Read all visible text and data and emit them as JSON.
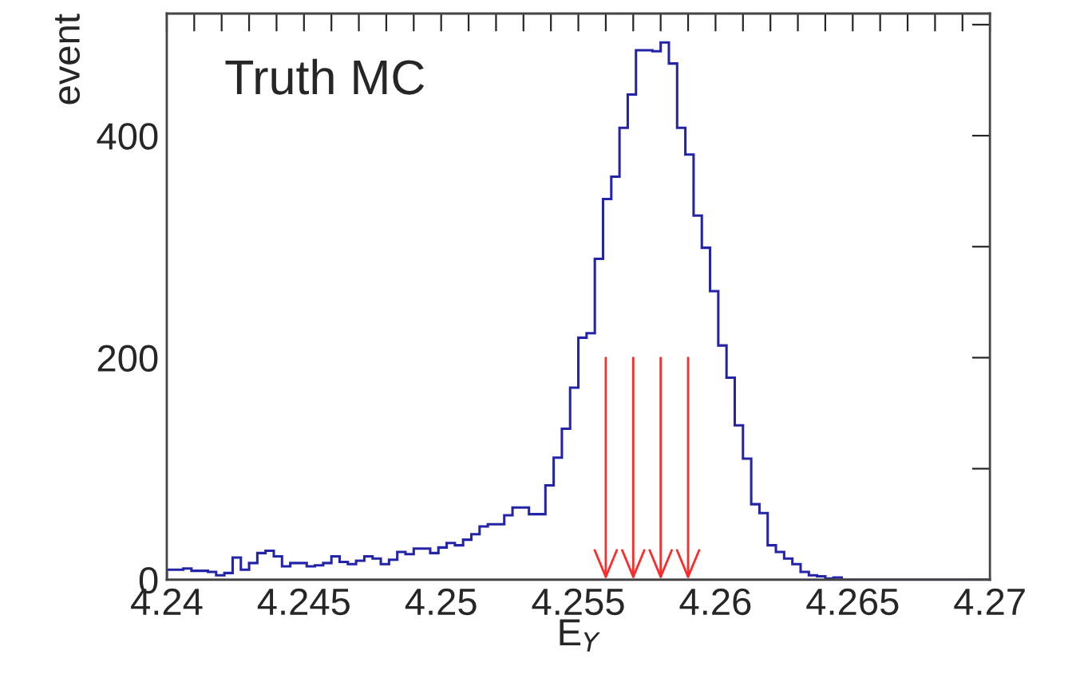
{
  "chart_data": {
    "type": "histogram",
    "xlabel": "E$_{Y}$",
    "ylabel": "event",
    "annotations": [
      "Truth MC"
    ],
    "bins": [
      4.24,
      4.2403,
      4.2406,
      4.2409,
      4.2412,
      4.2415,
      4.2418,
      4.2421,
      4.2424,
      4.2427,
      4.243,
      4.2433,
      4.2436,
      4.2439,
      4.2442,
      4.2445,
      4.2448,
      4.2451,
      4.2454,
      4.2457,
      4.246,
      4.2463,
      4.2466,
      4.2469,
      4.2472,
      4.2475,
      4.2478,
      4.2481,
      4.2484,
      4.2487,
      4.249,
      4.2493,
      4.2496,
      4.2499,
      4.2502,
      4.2505,
      4.2508,
      4.2511,
      4.2514,
      4.2517,
      4.252,
      4.2523,
      4.2526,
      4.2529,
      4.2532,
      4.2535,
      4.2538,
      4.2541,
      4.2544,
      4.2547,
      4.255,
      4.2553,
      4.2556,
      4.2559,
      4.2562,
      4.2565,
      4.2568,
      4.2571,
      4.2574,
      4.2577,
      4.258,
      4.2583,
      4.2586,
      4.2589,
      4.2592,
      4.2595,
      4.2598,
      4.2601,
      4.2604,
      4.2607,
      4.261,
      4.2613,
      4.2616,
      4.2619,
      4.2622,
      4.2625,
      4.2628,
      4.2631,
      4.2634,
      4.2637,
      4.264,
      4.2643,
      4.2646,
      4.2649,
      4.2652,
      4.2655,
      4.2658,
      4.2661,
      4.2664,
      4.2667,
      4.267,
      4.2673,
      4.2676,
      4.2679,
      4.2682,
      4.2685,
      4.2688,
      4.2691,
      4.2694,
      4.2697,
      4.27
    ],
    "values": [
      9,
      9,
      10,
      8,
      8,
      7,
      4,
      6,
      20,
      9,
      15,
      24,
      26,
      21,
      12,
      15,
      15,
      12,
      13,
      15,
      21,
      16,
      14,
      17,
      21,
      19,
      14,
      18,
      25,
      23,
      28,
      28,
      24,
      29,
      33,
      31,
      36,
      41,
      48,
      50,
      50,
      58,
      65,
      65,
      59,
      59,
      85,
      110,
      136,
      173,
      218,
      222,
      289,
      343,
      363,
      407,
      437,
      477,
      477,
      476,
      484,
      465,
      407,
      383,
      328,
      299,
      260,
      211,
      182,
      139,
      109,
      68,
      60,
      31,
      25,
      19,
      14,
      7,
      4,
      3,
      1,
      2,
      0,
      0,
      0,
      0,
      0,
      0,
      0,
      0,
      0,
      0,
      0,
      0,
      0,
      0,
      0,
      0,
      0,
      0
    ],
    "color": "#2424a8",
    "xlim": [
      4.24,
      4.27
    ],
    "xticks": [
      4.24,
      {
        "value": 4.241,
        "label": null
      },
      {
        "value": 4.242,
        "label": null
      },
      {
        "value": 4.243,
        "label": null
      },
      {
        "value": 4.244,
        "label": null
      },
      4.245,
      {
        "value": 4.246,
        "label": null
      },
      {
        "value": 4.247,
        "label": null
      },
      {
        "value": 4.248,
        "label": null
      },
      {
        "value": 4.249,
        "label": null
      },
      4.25,
      {
        "value": 4.251,
        "label": null
      },
      {
        "value": 4.252,
        "label": null
      },
      {
        "value": 4.253,
        "label": null
      },
      {
        "value": 4.254,
        "label": null
      },
      4.255,
      {
        "value": 4.256,
        "label": null
      },
      {
        "value": 4.257,
        "label": null
      },
      {
        "value": 4.258,
        "label": null
      },
      {
        "value": 4.259,
        "label": null
      },
      4.26,
      {
        "value": 4.261,
        "label": null
      },
      {
        "value": 4.262,
        "label": null
      },
      {
        "value": 4.263,
        "label": null
      },
      {
        "value": 4.264,
        "label": null
      },
      4.265,
      {
        "value": 4.266,
        "label": null
      },
      {
        "value": 4.267,
        "label": null
      },
      {
        "value": 4.268,
        "label": null
      },
      {
        "value": 4.269,
        "label": null
      },
      4.27
    ],
    "ylim": [
      0,
      510
    ],
    "yticks": [
      0,
      {
        "value": 100,
        "label": null
      },
      200,
      {
        "value": 300,
        "label": null
      },
      400,
      {
        "value": 500,
        "label": null
      }
    ],
    "grid": false,
    "legend": false
  }
}
